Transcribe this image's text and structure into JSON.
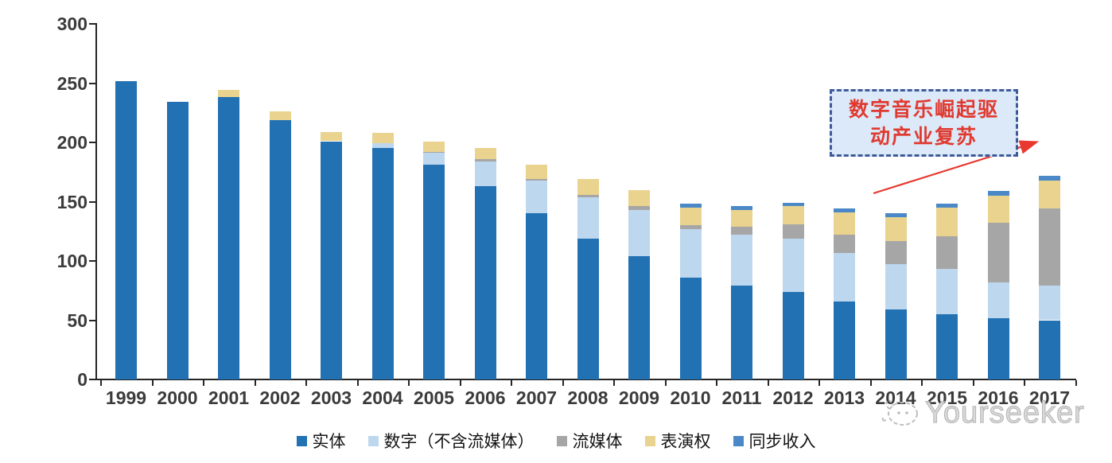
{
  "chart_data": {
    "type": "bar",
    "stacked": true,
    "title": "",
    "xlabel": "",
    "ylabel": "",
    "ylim": [
      0,
      300
    ],
    "yticks": [
      0,
      50,
      100,
      150,
      200,
      250,
      300
    ],
    "grid": false,
    "legend_position": "bottom",
    "categories": [
      "1999",
      "2000",
      "2001",
      "2002",
      "2003",
      "2004",
      "2005",
      "2006",
      "2007",
      "2008",
      "2009",
      "2010",
      "2011",
      "2012",
      "2013",
      "2014",
      "2015",
      "2016",
      "2017"
    ],
    "series": [
      {
        "name": "实体",
        "color": "#2271B3",
        "values": [
          252,
          234,
          238,
          219,
          201,
          195,
          181,
          163,
          140,
          119,
          104,
          86,
          79,
          74,
          66,
          59,
          55,
          52,
          50
        ]
      },
      {
        "name": "数字（不含流媒体）",
        "color": "#BDD7EE",
        "values": [
          0,
          0,
          0,
          0,
          0,
          4,
          10,
          21,
          28,
          35,
          39,
          41,
          43,
          45,
          41,
          38,
          38,
          30,
          29
        ]
      },
      {
        "name": "流媒体",
        "color": "#A6A6A6",
        "values": [
          0,
          0,
          0,
          0,
          0,
          0,
          1,
          2,
          1,
          2,
          3,
          3,
          7,
          12,
          15,
          20,
          28,
          50,
          65
        ]
      },
      {
        "name": "表演权",
        "color": "#E9D38F",
        "values": [
          0,
          0,
          6,
          7,
          8,
          9,
          9,
          9,
          12,
          13,
          14,
          15,
          14,
          15,
          19,
          20,
          24,
          23,
          24
        ]
      },
      {
        "name": "同步收入",
        "color": "#4A88C8",
        "values": [
          0,
          0,
          0,
          0,
          0,
          0,
          0,
          0,
          0,
          0,
          0,
          3,
          3,
          3,
          3,
          3,
          3,
          4,
          4
        ]
      }
    ]
  },
  "annotation": {
    "line1": "数字音乐崛起驱",
    "line2": "动产业复苏",
    "text_color": "#E03A30",
    "border_color": "#3E5B99",
    "fill_color": "#DCE9F8",
    "arrow_color": "#E8382F"
  },
  "watermark": {
    "text": "Yourseeker"
  }
}
